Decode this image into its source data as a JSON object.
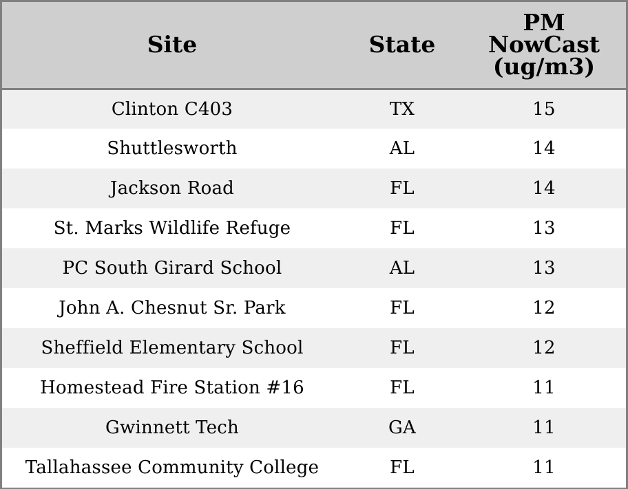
{
  "chart_data": {
    "type": "table",
    "columns": [
      "Site",
      "State",
      "PM NowCast (ug/m3)"
    ],
    "header_lines": {
      "site": [
        "Site"
      ],
      "state": [
        "State"
      ],
      "pm": [
        "PM",
        "NowCast",
        "(ug/m3)"
      ]
    },
    "rows": [
      {
        "site": "Clinton C403",
        "state": "TX",
        "pm": "15"
      },
      {
        "site": "Shuttlesworth",
        "state": "AL",
        "pm": "14"
      },
      {
        "site": "Jackson Road",
        "state": "FL",
        "pm": "14"
      },
      {
        "site": "St. Marks Wildlife Refuge",
        "state": "FL",
        "pm": "13"
      },
      {
        "site": "PC South Girard School",
        "state": "AL",
        "pm": "13"
      },
      {
        "site": "John A. Chesnut Sr. Park",
        "state": "FL",
        "pm": "12"
      },
      {
        "site": "Sheffield Elementary School",
        "state": "FL",
        "pm": "12"
      },
      {
        "site": "Homestead Fire Station #16",
        "state": "FL",
        "pm": "11"
      },
      {
        "site": "Gwinnett Tech",
        "state": "GA",
        "pm": "11"
      },
      {
        "site": "Tallahassee Community College",
        "state": "FL",
        "pm": "11"
      }
    ]
  },
  "colors": {
    "header_background": "#cfcfcf",
    "shaded_row": "#efefef",
    "plain_row": "#ffffff",
    "border": "#808080"
  }
}
